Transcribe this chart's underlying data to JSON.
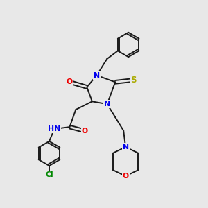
{
  "bg_color": "#e8e8e8",
  "bond_color": "#1a1a1a",
  "bond_width": 1.4,
  "atom_colors": {
    "N": "#0000ee",
    "O": "#ee0000",
    "S": "#aaaa00",
    "Cl": "#008800",
    "H": "#666666",
    "C": "#1a1a1a"
  },
  "figsize": [
    3.0,
    3.0
  ],
  "dpi": 100
}
